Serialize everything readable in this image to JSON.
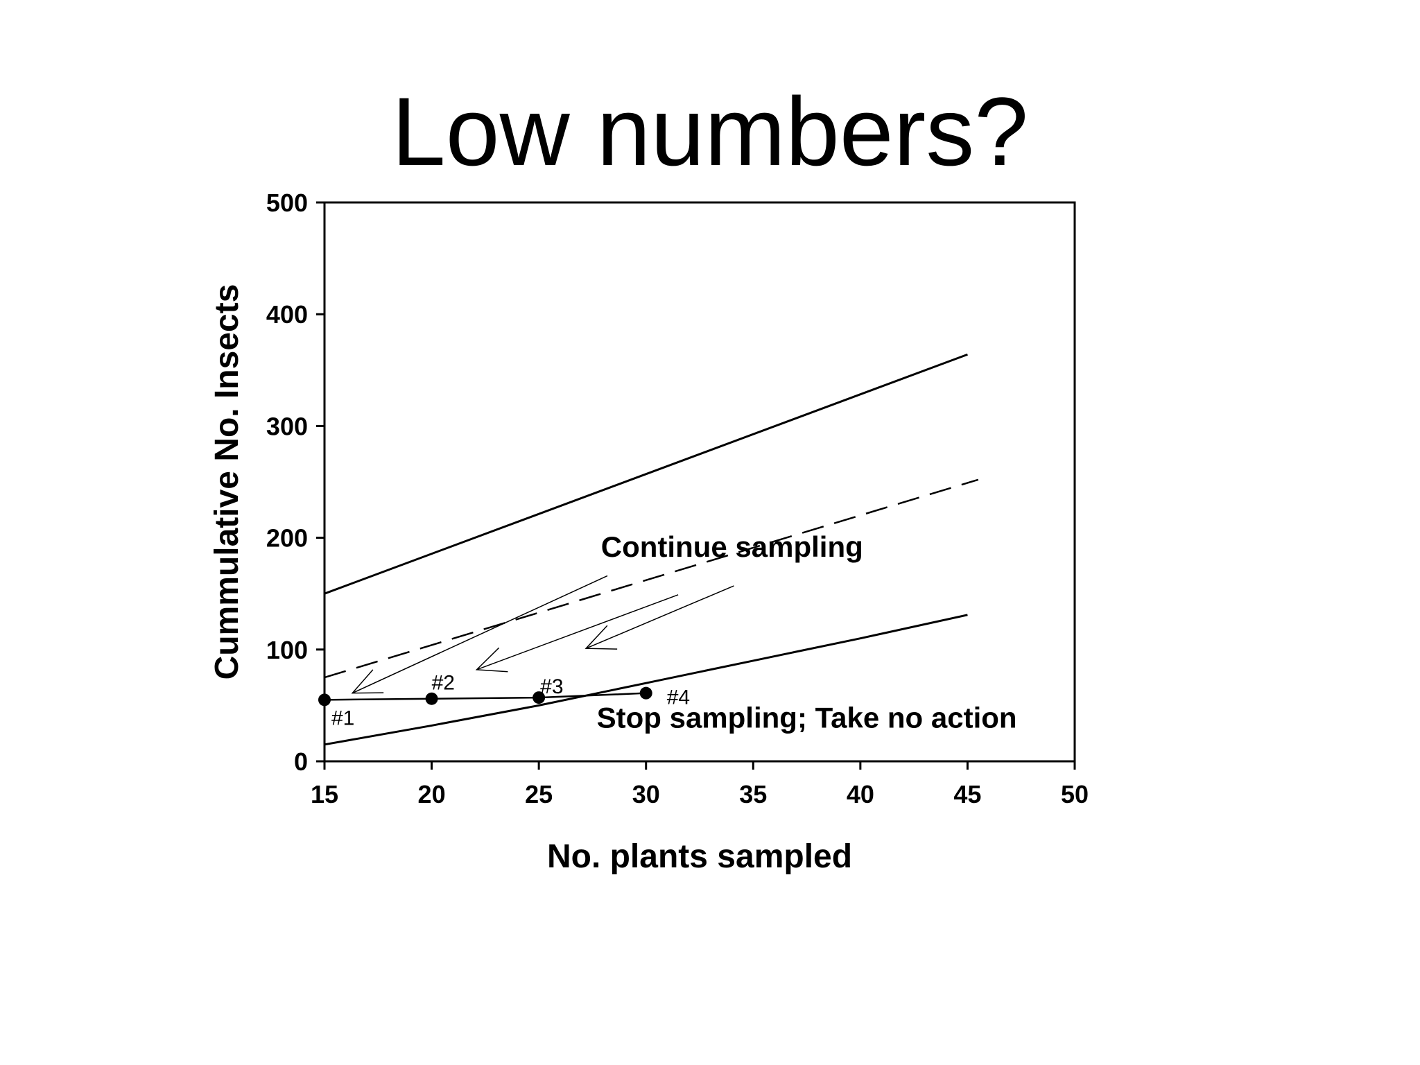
{
  "slide": {
    "title": "Low numbers?"
  },
  "chart_data": {
    "type": "line",
    "title": "",
    "xlabel": "No. plants sampled",
    "ylabel": "Cummulative No. Insects",
    "xlim": [
      15,
      50
    ],
    "ylim": [
      0,
      500
    ],
    "xticks": [
      15,
      20,
      25,
      30,
      35,
      40,
      45,
      50
    ],
    "yticks": [
      0,
      100,
      200,
      300,
      400,
      500
    ],
    "grid": false,
    "series": [
      {
        "style": "solid",
        "x": [
          15,
          45
        ],
        "y": [
          150,
          364
        ]
      },
      {
        "style": "dashed",
        "x": [
          15,
          45.5
        ],
        "y": [
          75,
          252
        ]
      },
      {
        "style": "solid",
        "x": [
          15,
          20,
          25,
          30,
          35,
          40,
          45
        ],
        "y": [
          15,
          32,
          50,
          70,
          90,
          110,
          131
        ]
      },
      {
        "style": "points",
        "x": [
          15,
          20,
          25,
          30
        ],
        "y": [
          55,
          56,
          57,
          61
        ],
        "labels": [
          "#1",
          "#2",
          "#3",
          "#4"
        ]
      }
    ],
    "annotations": [
      {
        "text": "Continue sampling",
        "x": 27.9,
        "y": 183
      },
      {
        "text": "Stop sampling; Take no action",
        "x": 27.7,
        "y": 30
      }
    ],
    "arrows": [
      {
        "from": [
          28.2,
          166
        ],
        "to": [
          16.3,
          61
        ]
      },
      {
        "from": [
          31.5,
          149
        ],
        "to": [
          22.1,
          82
        ]
      },
      {
        "from": [
          34.1,
          157
        ],
        "to": [
          27.2,
          101
        ]
      }
    ]
  }
}
